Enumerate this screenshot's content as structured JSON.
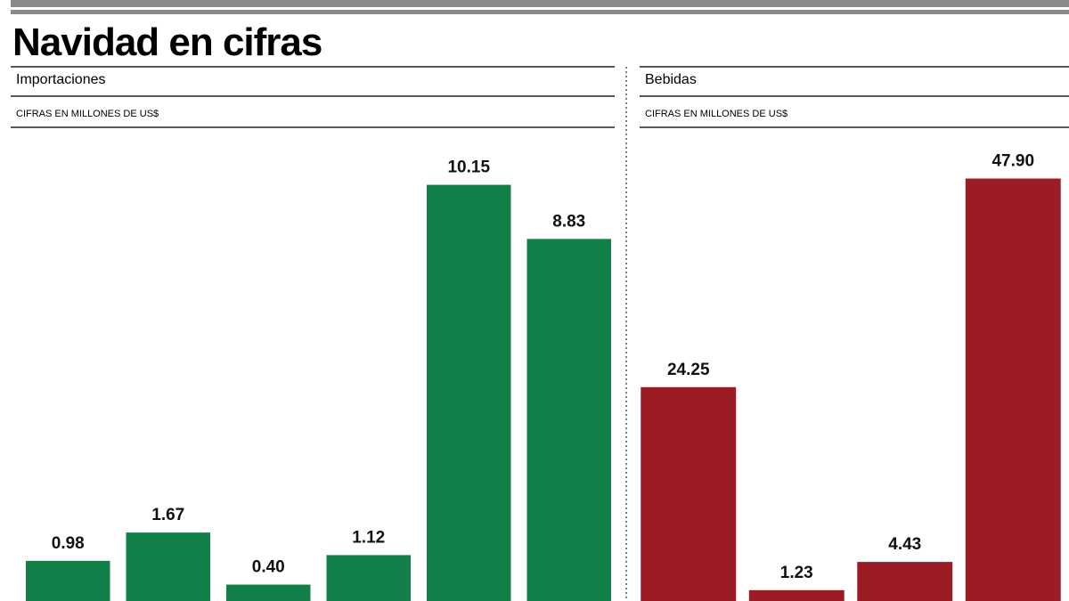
{
  "header": {
    "title": "Navidad en cifras"
  },
  "chart_data": [
    {
      "type": "bar",
      "title": "Importaciones",
      "subtitle": "CIFRAS EN MILLONES DE US$",
      "values": [
        0.98,
        1.67,
        0.4,
        1.12,
        10.15,
        8.83
      ],
      "value_labels": [
        "0.98",
        "1.67",
        "0.40",
        "1.12",
        "10.15",
        "8.83"
      ],
      "color": "#13804a",
      "ylim": [
        0,
        11.4
      ]
    },
    {
      "type": "bar",
      "title": "Bebidas",
      "subtitle": "CIFRAS EN MILLONES DE US$",
      "values": [
        24.25,
        1.23,
        4.43,
        47.9
      ],
      "value_labels": [
        "24.25",
        "1.23",
        "4.43",
        "47.90"
      ],
      "color": "#9b1c24",
      "ylim": [
        0,
        53
      ]
    }
  ]
}
